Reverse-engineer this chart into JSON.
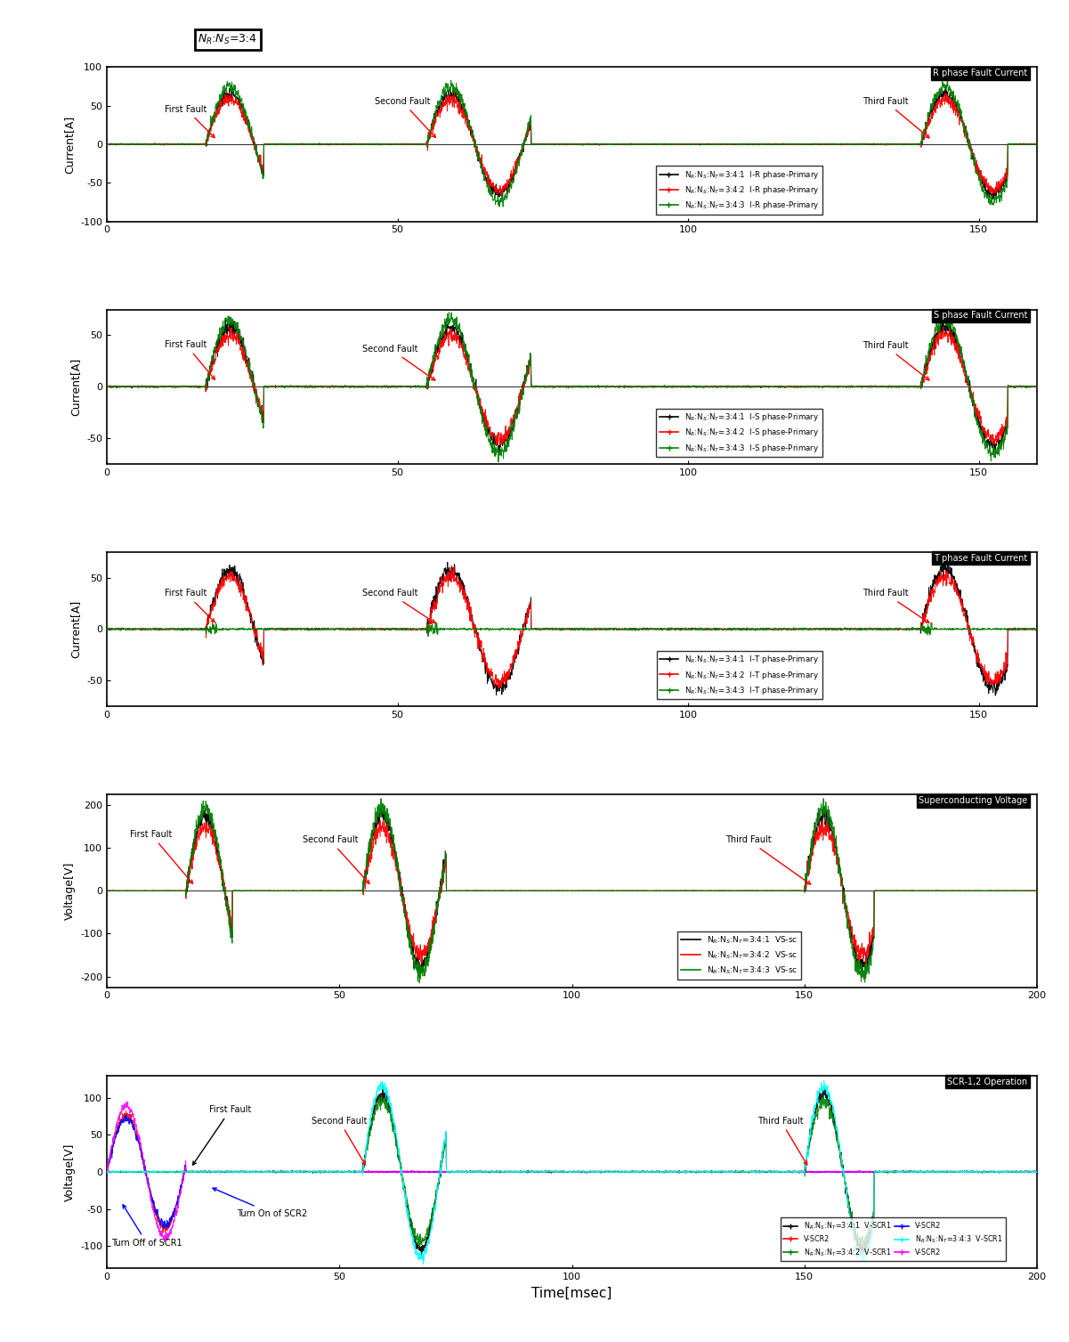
{
  "panels": [
    {
      "label": "R phase Fault Current",
      "ylabel": "Current[A]",
      "ylim": [
        -100,
        100
      ],
      "xlim": [
        0,
        160
      ],
      "xticks": [
        0,
        50,
        100,
        150
      ],
      "yticks": [
        -100,
        -50,
        0,
        50,
        100
      ]
    },
    {
      "label": "S phase Fault Current",
      "ylabel": "Current[A]",
      "ylim": [
        -75,
        75
      ],
      "xlim": [
        0,
        160
      ],
      "xticks": [
        0,
        50,
        100,
        150
      ],
      "yticks": [
        -50,
        0,
        50
      ]
    },
    {
      "label": "T phase Fault Current",
      "ylabel": "Current[A]",
      "ylim": [
        -75,
        75
      ],
      "xlim": [
        0,
        160
      ],
      "xticks": [
        0,
        50,
        100,
        150
      ],
      "yticks": [
        -50,
        0,
        50
      ]
    },
    {
      "label": "Superconducting Voltage",
      "ylabel": "Voltage[V]",
      "ylim": [
        -225,
        225
      ],
      "xlim": [
        0,
        200
      ],
      "xticks": [
        0,
        50,
        100,
        150,
        200
      ],
      "yticks": [
        -200,
        -100,
        0,
        100,
        200
      ]
    },
    {
      "label": "SCR-1,2 Operation",
      "ylabel": "Voltage[V]",
      "ylim": [
        -130,
        130
      ],
      "xlim": [
        0,
        200
      ],
      "xticks": [
        0,
        50,
        100,
        150,
        200
      ],
      "yticks": [
        -100,
        -50,
        0,
        50,
        100
      ]
    }
  ],
  "xlabel": "Time[msec]",
  "title_box": "N_R:N_S=3:4",
  "colors_3": [
    "black",
    "red",
    "green"
  ],
  "colors_6_scr1": [
    "black",
    "green",
    "cyan"
  ],
  "colors_6_scr2": [
    "red",
    "blue",
    "magenta"
  ]
}
